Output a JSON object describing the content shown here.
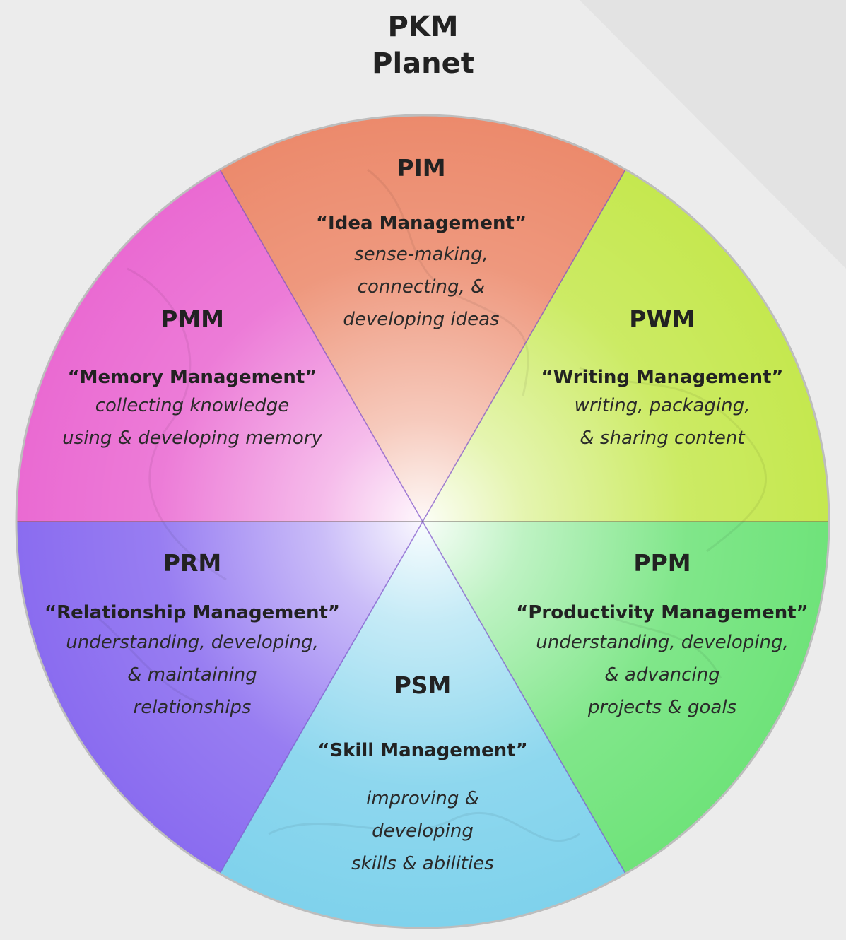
{
  "title": {
    "line1": "PKM",
    "line2": "Planet"
  },
  "colors": {
    "pim": "#ec8a6c",
    "pwm": "#c5e84f",
    "ppm": "#6fe37a",
    "psm": "#7fd2ec",
    "prm": "#8a6cf0",
    "pmm": "#ea6ad2",
    "divider": "#7a4fc9"
  },
  "segments": {
    "pim": {
      "abbr": "PIM",
      "name": "“Idea Management”",
      "desc": [
        "sense-making,",
        "connecting, &",
        "developing ideas"
      ]
    },
    "pwm": {
      "abbr": "PWM",
      "name": "“Writing Management”",
      "desc": [
        "writing, packaging,",
        "& sharing content"
      ]
    },
    "ppm": {
      "abbr": "PPM",
      "name": "“Productivity Management”",
      "desc": [
        "understanding, developing,",
        "& advancing",
        "projects & goals"
      ]
    },
    "psm": {
      "abbr": "PSM",
      "name": "“Skill Management”",
      "desc": [
        "improving &",
        "developing",
        "skills & abilities"
      ]
    },
    "prm": {
      "abbr": "PRM",
      "name": "“Relationship Management”",
      "desc": [
        "understanding, developing,",
        "& maintaining",
        "relationships"
      ]
    },
    "pmm": {
      "abbr": "PMM",
      "name": "“Memory Management”",
      "desc": [
        "collecting knowledge",
        "using & developing memory"
      ]
    }
  }
}
